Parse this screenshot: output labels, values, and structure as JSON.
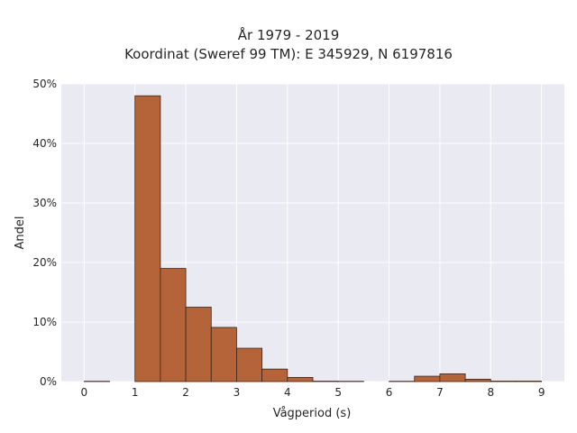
{
  "chart_data": {
    "type": "bar",
    "title": "År 1979 - 2019",
    "subtitle": "Koordinat (Sweref 99 TM): E 345929, N 6197816",
    "xlabel": "Vågperiod (s)",
    "ylabel": "Andel",
    "xlim": [
      -0.45,
      9.45
    ],
    "ylim": [
      0,
      0.5
    ],
    "x_ticks": [
      0,
      1,
      2,
      3,
      4,
      5,
      6,
      7,
      8,
      9
    ],
    "y_ticks": [
      0,
      0.1,
      0.2,
      0.3,
      0.4,
      0.5
    ],
    "y_tick_labels": [
      "0%",
      "10%",
      "20%",
      "30%",
      "40%",
      "50%"
    ],
    "bin_width": 0.5,
    "bins": [
      {
        "start": 0.0,
        "value": 0.0005
      },
      {
        "start": 0.5,
        "value": 0.0
      },
      {
        "start": 1.0,
        "value": 0.48
      },
      {
        "start": 1.5,
        "value": 0.19
      },
      {
        "start": 2.0,
        "value": 0.125
      },
      {
        "start": 2.5,
        "value": 0.091
      },
      {
        "start": 3.0,
        "value": 0.056
      },
      {
        "start": 3.5,
        "value": 0.021
      },
      {
        "start": 4.0,
        "value": 0.007
      },
      {
        "start": 4.5,
        "value": 0.0007
      },
      {
        "start": 5.0,
        "value": 0.0005
      },
      {
        "start": 5.5,
        "value": 0.0
      },
      {
        "start": 6.0,
        "value": 0.0005
      },
      {
        "start": 6.5,
        "value": 0.009
      },
      {
        "start": 7.0,
        "value": 0.013
      },
      {
        "start": 7.5,
        "value": 0.004
      },
      {
        "start": 8.0,
        "value": 0.0008
      },
      {
        "start": 8.5,
        "value": 0.0008
      }
    ],
    "grid": true,
    "bar_color": "#b5643a",
    "bar_edge_color": "#3a2418",
    "background_color": "#eaeaf2",
    "grid_color": "#ffffff"
  }
}
